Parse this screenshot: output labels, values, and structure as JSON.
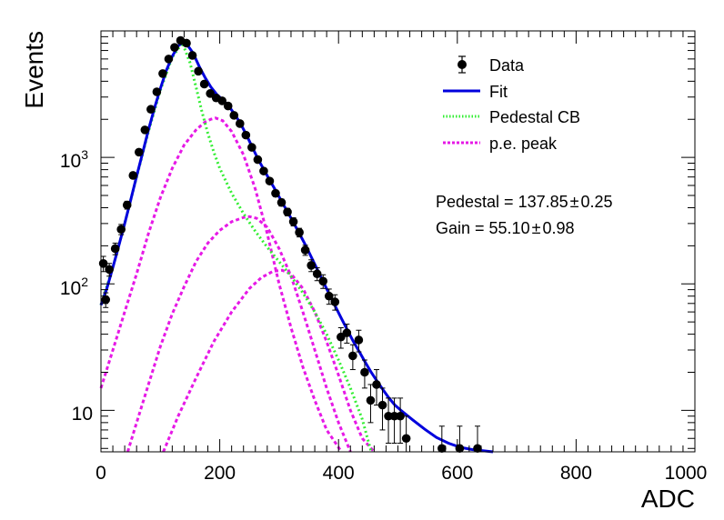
{
  "chart_data": {
    "type": "scatter",
    "xlabel": "ADC",
    "ylabel": "Events",
    "xlim": [
      0,
      1000
    ],
    "ylim": [
      4.7,
      10000
    ],
    "yscale": "log",
    "grid": false,
    "legend_position": "top-right",
    "x_ticks": [
      0,
      200,
      400,
      600,
      800,
      1000
    ],
    "y_tick_labels": [
      {
        "value": 10,
        "label": "10"
      },
      {
        "value": 100,
        "label": "10",
        "exp": "2"
      },
      {
        "value": 1000,
        "label": "10",
        "exp": "3"
      }
    ],
    "legend": [
      {
        "label": "Data",
        "style": "marker"
      },
      {
        "label": "Fit",
        "style": "solid",
        "color": "#0000dd"
      },
      {
        "label": "Pedestal CB",
        "style": "dotted",
        "color": "#33ee33"
      },
      {
        "label": "p.e. peak",
        "style": "dashed",
        "color": "#e619e6"
      }
    ],
    "annotations": [
      {
        "text": "Pedestal = 137.85",
        "pm": "±",
        "err": "0.25"
      },
      {
        "text": "Gain = 55.10",
        "pm": "±",
        "err": "0.98"
      }
    ],
    "data_points": [
      [
        4,
        145,
        20
      ],
      [
        8,
        75,
        10
      ],
      [
        14,
        130,
        15
      ],
      [
        24,
        190,
        20
      ],
      [
        34,
        270,
        25
      ],
      [
        44,
        420,
        30
      ],
      [
        54,
        720,
        40
      ],
      [
        64,
        1100,
        50
      ],
      [
        74,
        1650,
        60
      ],
      [
        84,
        2400,
        70
      ],
      [
        94,
        3300,
        80
      ],
      [
        104,
        4600,
        90
      ],
      [
        114,
        6000,
        100
      ],
      [
        124,
        7400,
        110
      ],
      [
        134,
        8400,
        120
      ],
      [
        144,
        8000,
        115
      ],
      [
        154,
        6400,
        100
      ],
      [
        164,
        4800,
        90
      ],
      [
        174,
        3800,
        80
      ],
      [
        184,
        3200,
        75
      ],
      [
        194,
        2950,
        70
      ],
      [
        204,
        2800,
        70
      ],
      [
        214,
        2550,
        65
      ],
      [
        224,
        2150,
        60
      ],
      [
        234,
        1850,
        55
      ],
      [
        244,
        1500,
        50
      ],
      [
        254,
        1200,
        45
      ],
      [
        264,
        960,
        40
      ],
      [
        274,
        780,
        35
      ],
      [
        284,
        650,
        32
      ],
      [
        294,
        520,
        30
      ],
      [
        304,
        440,
        28
      ],
      [
        314,
        370,
        25
      ],
      [
        324,
        310,
        23
      ],
      [
        334,
        255,
        20
      ],
      [
        344,
        185,
        17
      ],
      [
        354,
        140,
        15
      ],
      [
        364,
        120,
        14
      ],
      [
        374,
        105,
        13
      ],
      [
        384,
        80,
        11
      ],
      [
        394,
        72,
        10
      ],
      [
        404,
        38,
        7
      ],
      [
        414,
        41,
        7
      ],
      [
        424,
        27,
        6
      ],
      [
        434,
        36,
        7
      ],
      [
        444,
        20,
        5
      ],
      [
        454,
        12,
        4
      ],
      [
        464,
        16,
        5
      ],
      [
        474,
        11,
        4
      ],
      [
        484,
        9,
        3.5
      ],
      [
        494,
        9,
        3.5
      ],
      [
        504,
        9,
        3.5
      ],
      [
        514,
        6,
        3
      ],
      [
        574,
        5,
        2.5
      ],
      [
        604,
        5,
        2.5
      ],
      [
        634,
        5,
        2.5
      ]
    ],
    "fit_curve": [
      [
        0,
        68
      ],
      [
        10,
        92
      ],
      [
        20,
        135
      ],
      [
        30,
        200
      ],
      [
        40,
        300
      ],
      [
        50,
        460
      ],
      [
        60,
        710
      ],
      [
        70,
        1080
      ],
      [
        80,
        1650
      ],
      [
        90,
        2450
      ],
      [
        100,
        3500
      ],
      [
        110,
        4850
      ],
      [
        120,
        6300
      ],
      [
        130,
        7600
      ],
      [
        137,
        8050
      ],
      [
        145,
        7800
      ],
      [
        155,
        6700
      ],
      [
        165,
        5300
      ],
      [
        175,
        4300
      ],
      [
        185,
        3600
      ],
      [
        195,
        3150
      ],
      [
        205,
        2850
      ],
      [
        215,
        2550
      ],
      [
        225,
        2200
      ],
      [
        235,
        1850
      ],
      [
        245,
        1500
      ],
      [
        255,
        1200
      ],
      [
        265,
        960
      ],
      [
        275,
        790
      ],
      [
        285,
        650
      ],
      [
        295,
        540
      ],
      [
        305,
        440
      ],
      [
        315,
        365
      ],
      [
        325,
        300
      ],
      [
        335,
        245
      ],
      [
        345,
        200
      ],
      [
        355,
        160
      ],
      [
        365,
        128
      ],
      [
        375,
        102
      ],
      [
        385,
        82
      ],
      [
        395,
        66
      ],
      [
        405,
        53
      ],
      [
        415,
        43
      ],
      [
        425,
        35
      ],
      [
        435,
        29
      ],
      [
        445,
        24
      ],
      [
        455,
        20
      ],
      [
        465,
        17
      ],
      [
        475,
        14.5
      ],
      [
        485,
        12.5
      ],
      [
        495,
        11
      ],
      [
        505,
        10
      ],
      [
        525,
        8.4
      ],
      [
        545,
        7.1
      ],
      [
        565,
        6.1
      ],
      [
        585,
        5.5
      ],
      [
        605,
        5.1
      ],
      [
        625,
        4.9
      ],
      [
        660,
        4.7
      ]
    ],
    "pedestal_curve": [
      [
        0,
        68
      ],
      [
        20,
        135
      ],
      [
        40,
        300
      ],
      [
        60,
        700
      ],
      [
        80,
        1600
      ],
      [
        100,
        3400
      ],
      [
        120,
        6200
      ],
      [
        137,
        8050
      ],
      [
        150,
        5600
      ],
      [
        160,
        3600
      ],
      [
        170,
        2300
      ],
      [
        180,
        1550
      ],
      [
        190,
        1100
      ],
      [
        200,
        820
      ],
      [
        220,
        520
      ],
      [
        240,
        360
      ],
      [
        260,
        260
      ],
      [
        280,
        195
      ],
      [
        300,
        150
      ],
      [
        320,
        115
      ],
      [
        340,
        85
      ],
      [
        360,
        60
      ],
      [
        380,
        40
      ],
      [
        400,
        25
      ],
      [
        420,
        15
      ],
      [
        440,
        8.5
      ],
      [
        455,
        4.7
      ]
    ],
    "pe_peaks": [
      [
        [
          0,
          15
        ],
        [
          20,
          30
        ],
        [
          40,
          60
        ],
        [
          60,
          120
        ],
        [
          80,
          250
        ],
        [
          100,
          480
        ],
        [
          120,
          820
        ],
        [
          140,
          1250
        ],
        [
          160,
          1650
        ],
        [
          175,
          1900
        ],
        [
          185,
          2000
        ],
        [
          193,
          2050
        ],
        [
          205,
          1950
        ],
        [
          220,
          1600
        ],
        [
          240,
          1050
        ],
        [
          260,
          560
        ],
        [
          280,
          250
        ],
        [
          300,
          100
        ],
        [
          320,
          45
        ],
        [
          340,
          22
        ],
        [
          360,
          12
        ],
        [
          380,
          7
        ],
        [
          405,
          4.7
        ]
      ],
      [
        [
          45,
          4.7
        ],
        [
          60,
          8
        ],
        [
          80,
          16
        ],
        [
          100,
          32
        ],
        [
          120,
          58
        ],
        [
          140,
          95
        ],
        [
          160,
          150
        ],
        [
          180,
          210
        ],
        [
          200,
          265
        ],
        [
          220,
          310
        ],
        [
          240,
          335
        ],
        [
          250,
          340
        ],
        [
          262,
          330
        ],
        [
          280,
          280
        ],
        [
          300,
          190
        ],
        [
          320,
          115
        ],
        [
          340,
          60
        ],
        [
          360,
          30
        ],
        [
          380,
          15
        ],
        [
          400,
          8
        ],
        [
          420,
          4.7
        ]
      ],
      [
        [
          105,
          4.7
        ],
        [
          130,
          9
        ],
        [
          160,
          18
        ],
        [
          190,
          35
        ],
        [
          220,
          60
        ],
        [
          250,
          92
        ],
        [
          270,
          112
        ],
        [
          290,
          126
        ],
        [
          305,
          128
        ],
        [
          320,
          120
        ],
        [
          340,
          92
        ],
        [
          360,
          60
        ],
        [
          380,
          35
        ],
        [
          400,
          19
        ],
        [
          420,
          10
        ],
        [
          440,
          6
        ],
        [
          460,
          4.7
        ]
      ]
    ]
  }
}
